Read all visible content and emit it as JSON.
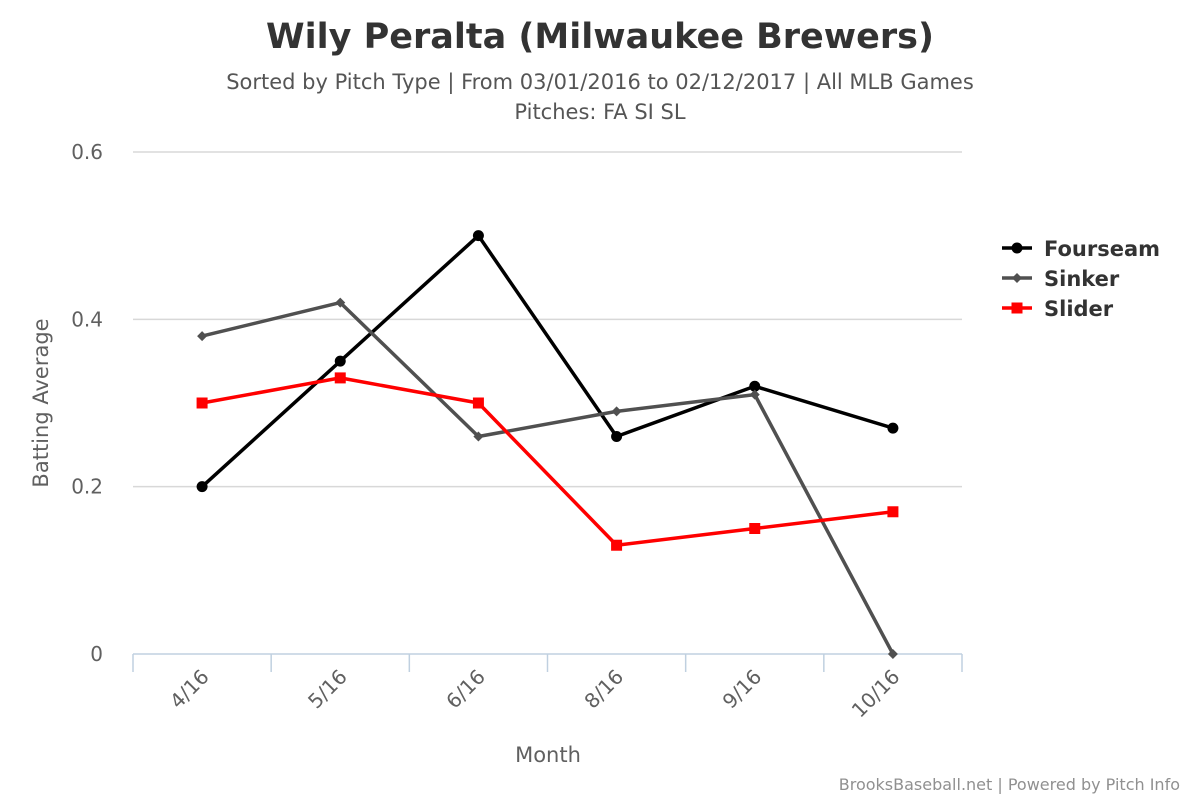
{
  "chart_data": {
    "type": "line",
    "title": "Wily Peralta (Milwaukee Brewers)",
    "subtitle_line1": "Sorted by Pitch Type | From 03/01/2016 to 02/12/2017 | All MLB Games",
    "subtitle_line2": "Pitches: FA SI SL",
    "xlabel": "Month",
    "ylabel": "Batting Average",
    "categories": [
      "4/16",
      "5/16",
      "6/16",
      "8/16",
      "9/16",
      "10/16"
    ],
    "ylim": [
      0,
      0.6
    ],
    "yticks": [
      "0",
      "0.2",
      "0.4",
      "0.6"
    ],
    "grid": true,
    "legend_position": "right",
    "series": [
      {
        "name": "Fourseam",
        "color": "#000000",
        "marker": "circle",
        "values": [
          0.2,
          0.35,
          0.5,
          0.26,
          0.32,
          0.27
        ]
      },
      {
        "name": "Sinker",
        "color": "#505050",
        "marker": "diamond",
        "values": [
          0.38,
          0.42,
          0.26,
          0.29,
          0.31,
          0.0
        ]
      },
      {
        "name": "Slider",
        "color": "#ff0000",
        "marker": "square",
        "values": [
          0.3,
          0.33,
          0.3,
          0.13,
          0.15,
          0.17
        ]
      }
    ],
    "credits": "BrooksBaseball.net | Powered by Pitch Info"
  }
}
